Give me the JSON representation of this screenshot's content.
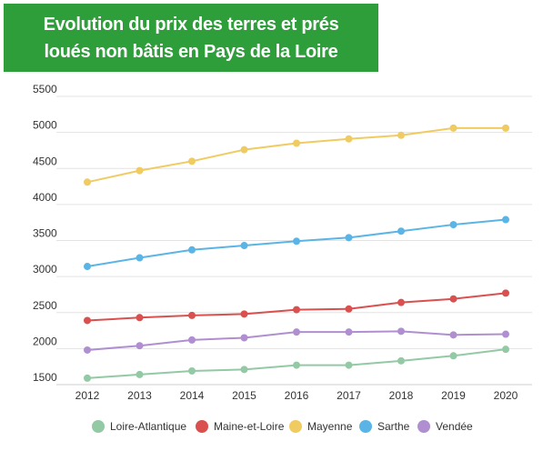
{
  "title": {
    "line1": "Evolution du prix des terres et prés",
    "line2": "loués non bâtis en Pays de la Loire"
  },
  "chart_data": {
    "type": "line",
    "title": "Evolution du prix des terres et prés loués non bâtis en Pays de la Loire",
    "xlabel": "",
    "ylabel": "",
    "x": [
      2012,
      2013,
      2014,
      2015,
      2016,
      2017,
      2018,
      2019,
      2020
    ],
    "ylim": [
      1500,
      5500
    ],
    "yticks": [
      1500,
      2000,
      2500,
      3000,
      3500,
      4000,
      4500,
      5000,
      5500
    ],
    "grid": true,
    "legend_position": "bottom",
    "series": [
      {
        "name": "Loire-Atlantique",
        "color": "#93c9a4",
        "values": [
          1590,
          1640,
          1690,
          1710,
          1770,
          1770,
          1830,
          1900,
          1990
        ]
      },
      {
        "name": "Maine-et-Loire",
        "color": "#d9504e",
        "values": [
          2390,
          2430,
          2460,
          2480,
          2540,
          2550,
          2640,
          2690,
          2770
        ]
      },
      {
        "name": "Mayenne",
        "color": "#f0cb62",
        "values": [
          4310,
          4470,
          4600,
          4760,
          4850,
          4910,
          4960,
          5060,
          5060
        ]
      },
      {
        "name": "Sarthe",
        "color": "#5ab4e5",
        "values": [
          3140,
          3260,
          3370,
          3430,
          3490,
          3540,
          3630,
          3720,
          3790
        ]
      },
      {
        "name": "Vendée",
        "color": "#b08fd0",
        "values": [
          1980,
          2040,
          2120,
          2150,
          2230,
          2230,
          2240,
          2190,
          2200
        ]
      }
    ]
  }
}
